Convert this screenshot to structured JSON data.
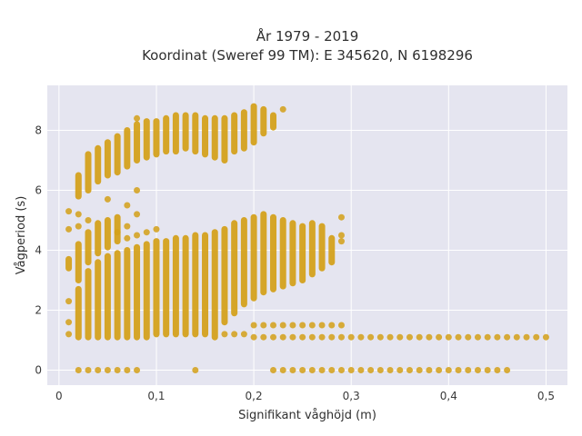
{
  "chart_data": {
    "type": "scatter",
    "title": "År 1979 - 2019",
    "subtitle": "Koordinat (Sweref 99 TM): E 345620, N 6198296",
    "xlabel": "Signifikant våghöjd (m)",
    "ylabel": "Vågperiod (s)",
    "xlim": [
      -0.012,
      0.522
    ],
    "ylim": [
      -0.5,
      9.5
    ],
    "x_ticks": [
      {
        "value": 0,
        "label": "0"
      },
      {
        "value": 0.1,
        "label": "0,1"
      },
      {
        "value": 0.2,
        "label": "0,2"
      },
      {
        "value": 0.3,
        "label": "0,3"
      },
      {
        "value": 0.4,
        "label": "0,4"
      },
      {
        "value": 0.5,
        "label": "0,5"
      }
    ],
    "y_ticks": [
      {
        "value": 0,
        "label": "0"
      },
      {
        "value": 2,
        "label": "2"
      },
      {
        "value": 4,
        "label": "4"
      },
      {
        "value": 6,
        "label": "6"
      },
      {
        "value": 8,
        "label": "8"
      }
    ],
    "grid": true,
    "colors": {
      "marker": "#d4a017",
      "plot_bg": "#e5e5f0",
      "grid": "#ffffff"
    },
    "series": [
      {
        "columns": [
          {
            "x": 0.01,
            "ranges": [
              [
                3.4,
                3.7
              ]
            ],
            "points": [
              5.3,
              4.7,
              2.3,
              1.6,
              1.2
            ]
          },
          {
            "x": 0.02,
            "ranges": [
              [
                1.1,
                2.7
              ],
              [
                3.0,
                4.2
              ],
              [
                5.8,
                6.5
              ]
            ],
            "points": [
              5.2,
              4.8,
              0
            ]
          },
          {
            "x": 0.03,
            "ranges": [
              [
                1.1,
                3.3
              ],
              [
                3.6,
                4.6
              ],
              [
                6.0,
                7.2
              ]
            ],
            "points": [
              5.0,
              0
            ]
          },
          {
            "x": 0.04,
            "ranges": [
              [
                1.1,
                3.6
              ],
              [
                3.9,
                4.9
              ],
              [
                6.3,
                7.4
              ]
            ],
            "points": [
              0
            ]
          },
          {
            "x": 0.05,
            "ranges": [
              [
                1.1,
                3.8
              ],
              [
                4.1,
                5.0
              ],
              [
                6.5,
                7.6
              ]
            ],
            "points": [
              5.7,
              0
            ]
          },
          {
            "x": 0.06,
            "ranges": [
              [
                1.1,
                3.9
              ],
              [
                4.3,
                5.1
              ],
              [
                6.6,
                7.8
              ]
            ],
            "points": [
              4.6,
              0
            ]
          },
          {
            "x": 0.07,
            "ranges": [
              [
                1.1,
                4.0
              ],
              [
                6.8,
                8.0
              ]
            ],
            "points": [
              5.5,
              4.8,
              4.4,
              0
            ]
          },
          {
            "x": 0.08,
            "ranges": [
              [
                1.1,
                4.1
              ],
              [
                7.0,
                8.2
              ]
            ],
            "points": [
              5.2,
              4.5,
              6.0,
              8.4,
              0
            ]
          },
          {
            "x": 0.09,
            "ranges": [
              [
                1.1,
                4.2
              ],
              [
                7.1,
                8.3
              ]
            ],
            "points": [
              4.6
            ]
          },
          {
            "x": 0.1,
            "ranges": [
              [
                1.2,
                4.3
              ],
              [
                7.2,
                8.3
              ]
            ],
            "points": [
              4.7
            ]
          },
          {
            "x": 0.11,
            "ranges": [
              [
                1.2,
                4.3
              ],
              [
                7.3,
                8.4
              ]
            ],
            "points": []
          },
          {
            "x": 0.12,
            "ranges": [
              [
                1.2,
                4.4
              ],
              [
                7.3,
                8.5
              ]
            ],
            "points": []
          },
          {
            "x": 0.13,
            "ranges": [
              [
                1.2,
                4.4
              ],
              [
                7.4,
                8.5
              ]
            ],
            "points": []
          },
          {
            "x": 0.14,
            "ranges": [
              [
                1.2,
                4.5
              ],
              [
                7.3,
                8.5
              ]
            ],
            "points": [
              0
            ]
          },
          {
            "x": 0.15,
            "ranges": [
              [
                1.2,
                4.5
              ],
              [
                7.2,
                8.4
              ]
            ],
            "points": []
          },
          {
            "x": 0.16,
            "ranges": [
              [
                1.1,
                4.6
              ],
              [
                7.1,
                8.4
              ]
            ],
            "points": []
          },
          {
            "x": 0.17,
            "ranges": [
              [
                1.6,
                4.7
              ],
              [
                7.0,
                8.4
              ]
            ],
            "points": [
              1.2
            ]
          },
          {
            "x": 0.18,
            "ranges": [
              [
                1.9,
                4.9
              ],
              [
                7.3,
                8.5
              ]
            ],
            "points": [
              1.2
            ]
          },
          {
            "x": 0.19,
            "ranges": [
              [
                2.2,
                5.0
              ],
              [
                7.4,
                8.6
              ]
            ],
            "points": [
              1.2
            ]
          },
          {
            "x": 0.2,
            "ranges": [
              [
                2.4,
                5.1
              ],
              [
                7.6,
                8.8
              ]
            ],
            "points": [
              1.5,
              1.1
            ]
          },
          {
            "x": 0.21,
            "ranges": [
              [
                2.6,
                5.2
              ],
              [
                7.9,
                8.7
              ]
            ],
            "points": [
              1.5,
              1.1
            ]
          },
          {
            "x": 0.22,
            "ranges": [
              [
                2.7,
                5.1
              ],
              [
                8.1,
                8.5
              ]
            ],
            "points": [
              1.5,
              1.1,
              0
            ]
          },
          {
            "x": 0.23,
            "ranges": [
              [
                2.8,
                5.0
              ]
            ],
            "points": [
              8.7,
              1.5,
              1.1,
              0
            ]
          },
          {
            "x": 0.24,
            "ranges": [
              [
                2.9,
                4.9
              ]
            ],
            "points": [
              1.5,
              1.1,
              0
            ]
          },
          {
            "x": 0.25,
            "ranges": [
              [
                3.0,
                4.8
              ]
            ],
            "points": [
              1.5,
              1.1,
              0
            ]
          },
          {
            "x": 0.26,
            "ranges": [
              [
                3.2,
                4.9
              ]
            ],
            "points": [
              1.5,
              1.1,
              0
            ]
          },
          {
            "x": 0.27,
            "ranges": [
              [
                3.4,
                4.8
              ]
            ],
            "points": [
              1.5,
              1.1,
              0
            ]
          },
          {
            "x": 0.28,
            "ranges": [
              [
                3.6,
                4.4
              ]
            ],
            "points": [
              1.5,
              1.1,
              0
            ]
          },
          {
            "x": 0.29,
            "ranges": [],
            "points": [
              5.1,
              4.5,
              4.3,
              1.5,
              1.1,
              0
            ]
          },
          {
            "x": 0.3,
            "ranges": [],
            "points": [
              1.1,
              0
            ]
          },
          {
            "x": 0.31,
            "ranges": [],
            "points": [
              1.1,
              0
            ]
          },
          {
            "x": 0.32,
            "ranges": [],
            "points": [
              1.1,
              0
            ]
          },
          {
            "x": 0.33,
            "ranges": [],
            "points": [
              1.1,
              0
            ]
          },
          {
            "x": 0.34,
            "ranges": [],
            "points": [
              1.1,
              0
            ]
          },
          {
            "x": 0.35,
            "ranges": [],
            "points": [
              1.1,
              0
            ]
          },
          {
            "x": 0.36,
            "ranges": [],
            "points": [
              1.1,
              0
            ]
          },
          {
            "x": 0.37,
            "ranges": [],
            "points": [
              1.1,
              0
            ]
          },
          {
            "x": 0.38,
            "ranges": [],
            "points": [
              1.1,
              0
            ]
          },
          {
            "x": 0.39,
            "ranges": [],
            "points": [
              1.1,
              0
            ]
          },
          {
            "x": 0.4,
            "ranges": [],
            "points": [
              1.1,
              0
            ]
          },
          {
            "x": 0.41,
            "ranges": [],
            "points": [
              1.1,
              0
            ]
          },
          {
            "x": 0.42,
            "ranges": [],
            "points": [
              1.1,
              0
            ]
          },
          {
            "x": 0.43,
            "ranges": [],
            "points": [
              1.1,
              0
            ]
          },
          {
            "x": 0.44,
            "ranges": [],
            "points": [
              1.1,
              0
            ]
          },
          {
            "x": 0.45,
            "ranges": [],
            "points": [
              1.1,
              0
            ]
          },
          {
            "x": 0.46,
            "ranges": [],
            "points": [
              1.1,
              0
            ]
          },
          {
            "x": 0.47,
            "ranges": [],
            "points": [
              1.1
            ]
          },
          {
            "x": 0.48,
            "ranges": [],
            "points": [
              1.1
            ]
          },
          {
            "x": 0.49,
            "ranges": [],
            "points": [
              1.1
            ]
          },
          {
            "x": 0.5,
            "ranges": [],
            "points": [
              1.1
            ]
          }
        ]
      }
    ]
  }
}
